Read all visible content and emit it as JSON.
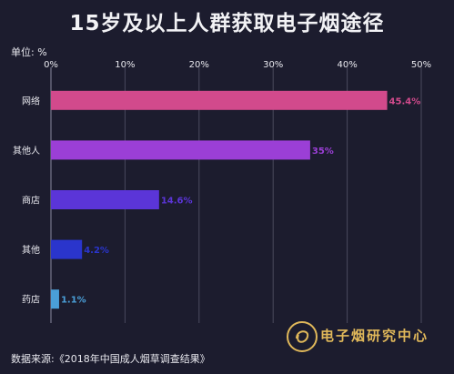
{
  "chart_data": {
    "type": "bar",
    "orientation": "horizontal",
    "title": "15岁及以上人群获取电子烟途径",
    "unit_label": "单位: %",
    "categories": [
      "网络",
      "其他人",
      "商店",
      "其他",
      "药店"
    ],
    "values": [
      45.4,
      35,
      14.6,
      4.2,
      1.1
    ],
    "value_labels": [
      "45.4%",
      "35%",
      "14.6%",
      "4.2%",
      "1.1%"
    ],
    "xlim": [
      0,
      50
    ],
    "x_ticks": [
      0,
      10,
      20,
      30,
      40,
      50
    ],
    "x_tick_labels": [
      "0%",
      "10%",
      "20%",
      "30%",
      "40%",
      "50%"
    ],
    "grid": "vertical gridlines",
    "colors": [
      "#d24a8c",
      "#9b3fd6",
      "#5b35d8",
      "#2a35cc",
      "#4a9fd8"
    ],
    "source": "数据来源:《2018年中国成人烟草调查结果》",
    "watermark": "电子烟研究中心"
  }
}
